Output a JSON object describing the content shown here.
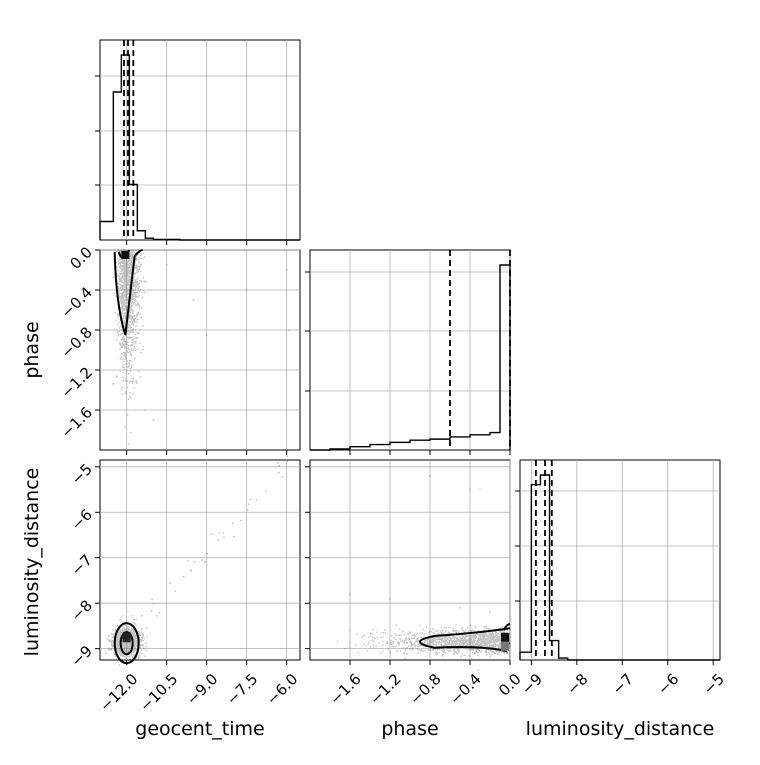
{
  "chart_data": {
    "type": "corner",
    "colors": {
      "line": "#000000",
      "grid": "#b0b0b0",
      "scatter": "#555555",
      "background": "#ffffff"
    },
    "grid": true,
    "parameters": [
      "geocent_time",
      "phase",
      "luminosity_distance"
    ],
    "axis_labels": {
      "geocent_time": "geocent_time",
      "phase": "phase",
      "luminosity_distance": "luminosity_distance"
    },
    "ranges": {
      "geocent_time": [
        -13.0,
        -5.5
      ],
      "phase": [
        -2.0,
        0.0
      ],
      "luminosity_distance": [
        -9.25,
        -4.85
      ]
    },
    "ticks": {
      "geocent_time": [
        "−12.0",
        "−10.5",
        "−9.0",
        "−7.5",
        "−6.0"
      ],
      "geocent_time_values": [
        -12.0,
        -10.5,
        -9.0,
        -7.5,
        -6.0
      ],
      "phase_x": [
        "−1.6",
        "−1.2",
        "−0.8",
        "−0.4",
        "0.0"
      ],
      "phase_x_values": [
        -1.6,
        -1.2,
        -0.8,
        -0.4,
        0.0
      ],
      "phase_y": [
        "0.0",
        "−0.4",
        "−0.8",
        "−1.2",
        "−1.6"
      ],
      "phase_y_values": [
        0.0,
        -0.4,
        -0.8,
        -1.2,
        -1.6
      ],
      "luminosity_distance": [
        "−9",
        "−8",
        "−7",
        "−6",
        "−5"
      ],
      "luminosity_distance_values": [
        -9,
        -8,
        -7,
        -6,
        -5
      ]
    },
    "quantiles": {
      "geocent_time": [
        -12.1,
        -11.95,
        -11.75
      ],
      "phase": [
        -0.6,
        0.0
      ],
      "luminosity_distance": [
        -8.9,
        -8.7,
        -8.55
      ]
    },
    "histograms": {
      "geocent_time": {
        "edges": [
          -13.0,
          -12.5,
          -12.2,
          -11.9,
          -11.6,
          -11.3,
          -11.0,
          -10.0,
          -5.5
        ],
        "counts": [
          0.1,
          0.8,
          1.0,
          0.3,
          0.05,
          0.01,
          0.003,
          0.0
        ]
      },
      "phase": {
        "edges": [
          -2.0,
          -1.8,
          -1.6,
          -1.4,
          -1.2,
          -1.0,
          -0.8,
          -0.6,
          -0.4,
          -0.2,
          -0.1,
          -0.02,
          0.0
        ],
        "counts": [
          0.0,
          0.005,
          0.015,
          0.025,
          0.035,
          0.045,
          0.05,
          0.06,
          0.07,
          0.08,
          0.85,
          0.85
        ]
      },
      "luminosity_distance": {
        "edges": [
          -9.25,
          -9.0,
          -8.8,
          -8.6,
          -8.4,
          -8.2,
          -8.0,
          -4.85
        ],
        "counts": [
          0.04,
          0.9,
          0.95,
          0.1,
          0.01,
          0.0,
          0.0
        ]
      }
    }
  }
}
